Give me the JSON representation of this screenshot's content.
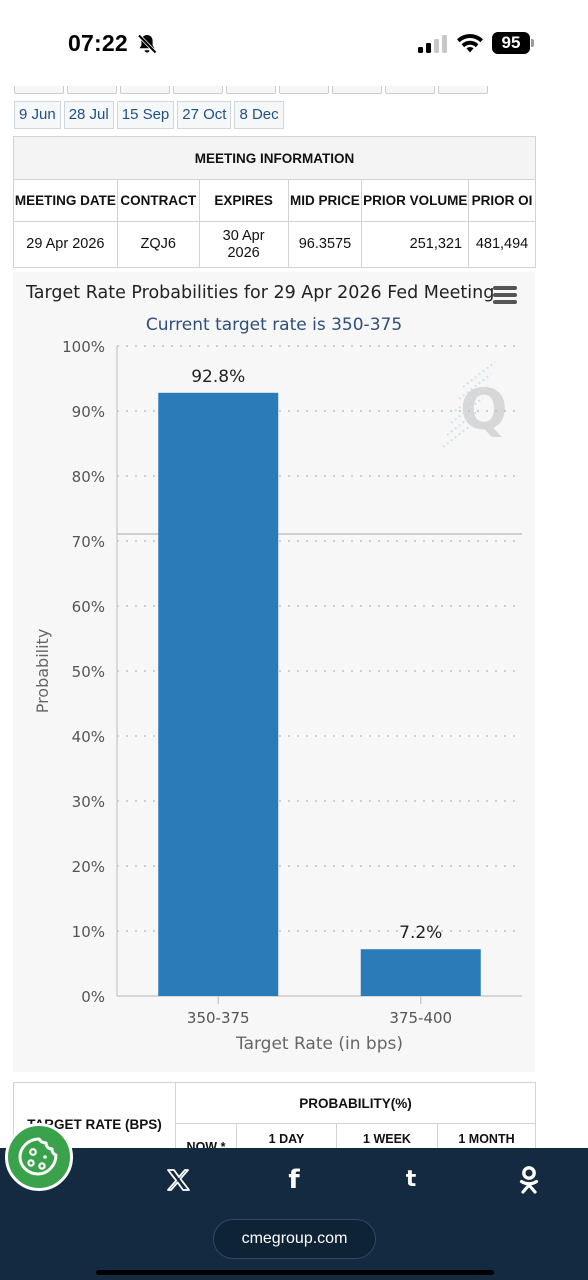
{
  "status_bar": {
    "time": "07:22",
    "battery": "95"
  },
  "date_tabs": [
    "9 Jun",
    "28 Jul",
    "15 Sep",
    "27 Oct",
    "8 Dec"
  ],
  "meeting_table": {
    "caption": "MEETING INFORMATION",
    "headers": [
      "MEETING DATE",
      "CONTRACT",
      "EXPIRES",
      "MID PRICE",
      "PRIOR VOLUME",
      "PRIOR OI"
    ],
    "row": [
      "29 Apr 2026",
      "ZQJ6",
      "30 Apr 2026",
      "96.3575",
      "251,321",
      "481,494"
    ]
  },
  "chart": {
    "title": "Target Rate Probabilities for 29 Apr 2026 Fed Meeting",
    "subtitle": "Current target rate is 350-375"
  },
  "chart_data": {
    "type": "bar",
    "title": "Target Rate Probabilities for 29 Apr 2026 Fed Meeting",
    "subtitle": "Current target rate is 350-375",
    "xlabel": "Target Rate (in bps)",
    "ylabel": "Probability",
    "categories": [
      "350-375",
      "375-400"
    ],
    "values": [
      92.8,
      7.2
    ],
    "data_labels": [
      "92.8%",
      "7.2%"
    ],
    "ylim": [
      0,
      100
    ],
    "yticks": [
      "0%",
      "10%",
      "20%",
      "30%",
      "40%",
      "50%",
      "60%",
      "70%",
      "80%",
      "90%",
      "100%"
    ],
    "grid": true,
    "bar_color": "#2b7bb9"
  },
  "prob_table": {
    "left_header": "TARGET RATE (BPS)",
    "group_header": "PROBABILITY(%)",
    "sub_headers": [
      "NOW *",
      "1 DAY",
      "1 WEEK",
      "1 MONTH"
    ]
  },
  "share_bar": {
    "icons": [
      "cookie-icon",
      "x-icon",
      "facebook-icon",
      "tumblr-icon",
      "odnoklassniki-icon"
    ],
    "url": "cmegroup.com",
    "background": "#132a40"
  }
}
